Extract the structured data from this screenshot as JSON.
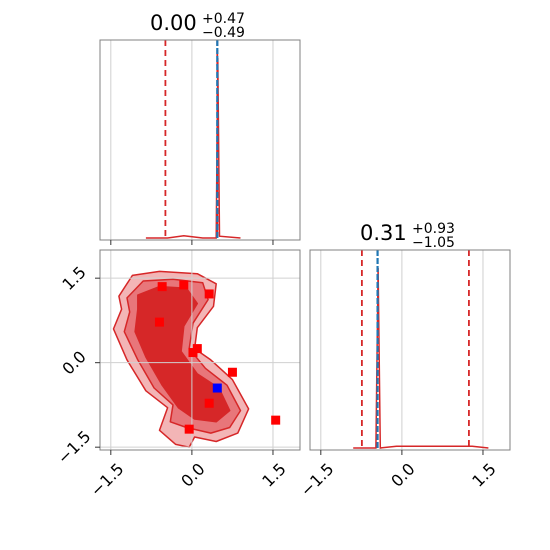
{
  "chart_data": [
    {
      "type": "line",
      "panel": "marginal-param-1",
      "title": {
        "median": "0.00",
        "plus": "+0.47",
        "minus": "−0.49"
      },
      "xlim": [
        -1.7,
        2.0
      ],
      "ticks": [
        -1.5,
        0.0,
        1.5
      ],
      "tick_labels": [
        "−1.5",
        "0.0",
        "1.5"
      ],
      "grid": true,
      "quantile_lines": [
        -0.49,
        0.47
      ],
      "truth_line": 0.47,
      "histogram": {
        "x": [
          -0.85,
          -0.45,
          -0.15,
          0.2,
          0.45,
          0.48,
          0.51,
          0.9
        ],
        "y": [
          0.0,
          0.0,
          0.012,
          0.0,
          0.0,
          1.0,
          0.01,
          0.0
        ]
      },
      "colors": {
        "histogram": "#d62728",
        "quantiles": "#d62728",
        "truth": "#1f77b4"
      }
    },
    {
      "type": "line",
      "panel": "marginal-param-2",
      "title": {
        "median": "0.31",
        "plus": "+0.93",
        "minus": "−1.05"
      },
      "xlim": [
        -1.7,
        2.0
      ],
      "ticks": [
        -1.5,
        0.0,
        1.5
      ],
      "tick_labels": [
        "−1.5",
        "0.0",
        "1.5"
      ],
      "grid": true,
      "quantile_lines": [
        -0.74,
        1.24
      ],
      "truth_line": -0.45,
      "histogram": {
        "x": [
          -0.9,
          -0.48,
          -0.44,
          -0.4,
          -0.1,
          1.0,
          1.3,
          1.6
        ],
        "y": [
          0.0,
          0.0,
          1.0,
          0.0,
          0.01,
          0.01,
          0.01,
          0.0
        ]
      },
      "colors": {
        "histogram": "#d62728",
        "quantiles": "#d62728",
        "truth": "#1f77b4"
      }
    },
    {
      "type": "scatter",
      "panel": "joint-param-1-vs-param-2",
      "xlim": [
        -1.7,
        2.0
      ],
      "ylim": [
        -1.55,
        2.0
      ],
      "xticks": [
        -1.5,
        0.0,
        1.5
      ],
      "yticks": [
        -1.5,
        0.0,
        1.5
      ],
      "xtick_labels": [
        "−1.5",
        "0.0",
        "1.5"
      ],
      "ytick_labels": [
        "−1.5",
        "0.0",
        "1.5"
      ],
      "grid": true,
      "contours": [
        {
          "level": "outer",
          "color": "#f3b5b6",
          "points": [
            [
              -1.35,
              1.18
            ],
            [
              -1.1,
              1.55
            ],
            [
              -0.6,
              1.62
            ],
            [
              0.1,
              1.58
            ],
            [
              0.45,
              1.4
            ],
            [
              0.4,
              1.0
            ],
            [
              0.1,
              0.62
            ],
            [
              0.05,
              0.25
            ],
            [
              0.35,
              0.05
            ],
            [
              0.75,
              -0.3
            ],
            [
              1.05,
              -0.82
            ],
            [
              0.85,
              -1.25
            ],
            [
              0.45,
              -1.4
            ],
            [
              0.05,
              -1.32
            ],
            [
              -0.05,
              -1.5
            ],
            [
              -0.3,
              -1.45
            ],
            [
              -0.6,
              -1.2
            ],
            [
              -0.45,
              -0.8
            ],
            [
              -0.85,
              -0.5
            ],
            [
              -1.2,
              0.05
            ],
            [
              -1.45,
              0.6
            ],
            [
              -1.3,
              0.95
            ]
          ]
        },
        {
          "level": "middle",
          "color": "#e8767a",
          "points": [
            [
              -1.2,
              1.15
            ],
            [
              -0.9,
              1.45
            ],
            [
              -0.35,
              1.48
            ],
            [
              0.2,
              1.42
            ],
            [
              0.3,
              1.12
            ],
            [
              0.02,
              0.7
            ],
            [
              -0.05,
              0.25
            ],
            [
              0.25,
              -0.1
            ],
            [
              0.65,
              -0.4
            ],
            [
              0.9,
              -0.85
            ],
            [
              0.7,
              -1.15
            ],
            [
              0.35,
              -1.25
            ],
            [
              -0.1,
              -1.15
            ],
            [
              -0.4,
              -1.05
            ],
            [
              -0.35,
              -0.75
            ],
            [
              -0.7,
              -0.45
            ],
            [
              -1.0,
              0.05
            ],
            [
              -1.25,
              0.55
            ],
            [
              -1.15,
              0.9
            ]
          ]
        },
        {
          "level": "inner",
          "color": "#d62728",
          "points": [
            [
              -1.0,
              1.2
            ],
            [
              -0.6,
              1.35
            ],
            [
              -0.1,
              1.32
            ],
            [
              0.1,
              1.05
            ],
            [
              -0.15,
              0.65
            ],
            [
              -0.2,
              0.2
            ],
            [
              0.1,
              -0.2
            ],
            [
              0.5,
              -0.45
            ],
            [
              0.7,
              -0.85
            ],
            [
              0.45,
              -1.05
            ],
            [
              0.05,
              -1.0
            ],
            [
              -0.25,
              -0.8
            ],
            [
              -0.55,
              -0.4
            ],
            [
              -0.85,
              0.1
            ],
            [
              -1.05,
              0.55
            ],
            [
              -1.0,
              0.95
            ]
          ]
        }
      ],
      "samples": {
        "x": [
          -0.55,
          -0.15,
          0.32,
          -0.6,
          0.1,
          0.02,
          0.75,
          0.32,
          -0.05,
          1.55
        ],
        "y": [
          1.35,
          1.38,
          1.22,
          0.72,
          0.25,
          0.18,
          -0.17,
          -0.72,
          -1.18,
          -1.02
        ],
        "color": "#ff0000"
      },
      "truth_point": {
        "x": 0.47,
        "y": -0.45,
        "color": "#0000ff"
      }
    }
  ]
}
